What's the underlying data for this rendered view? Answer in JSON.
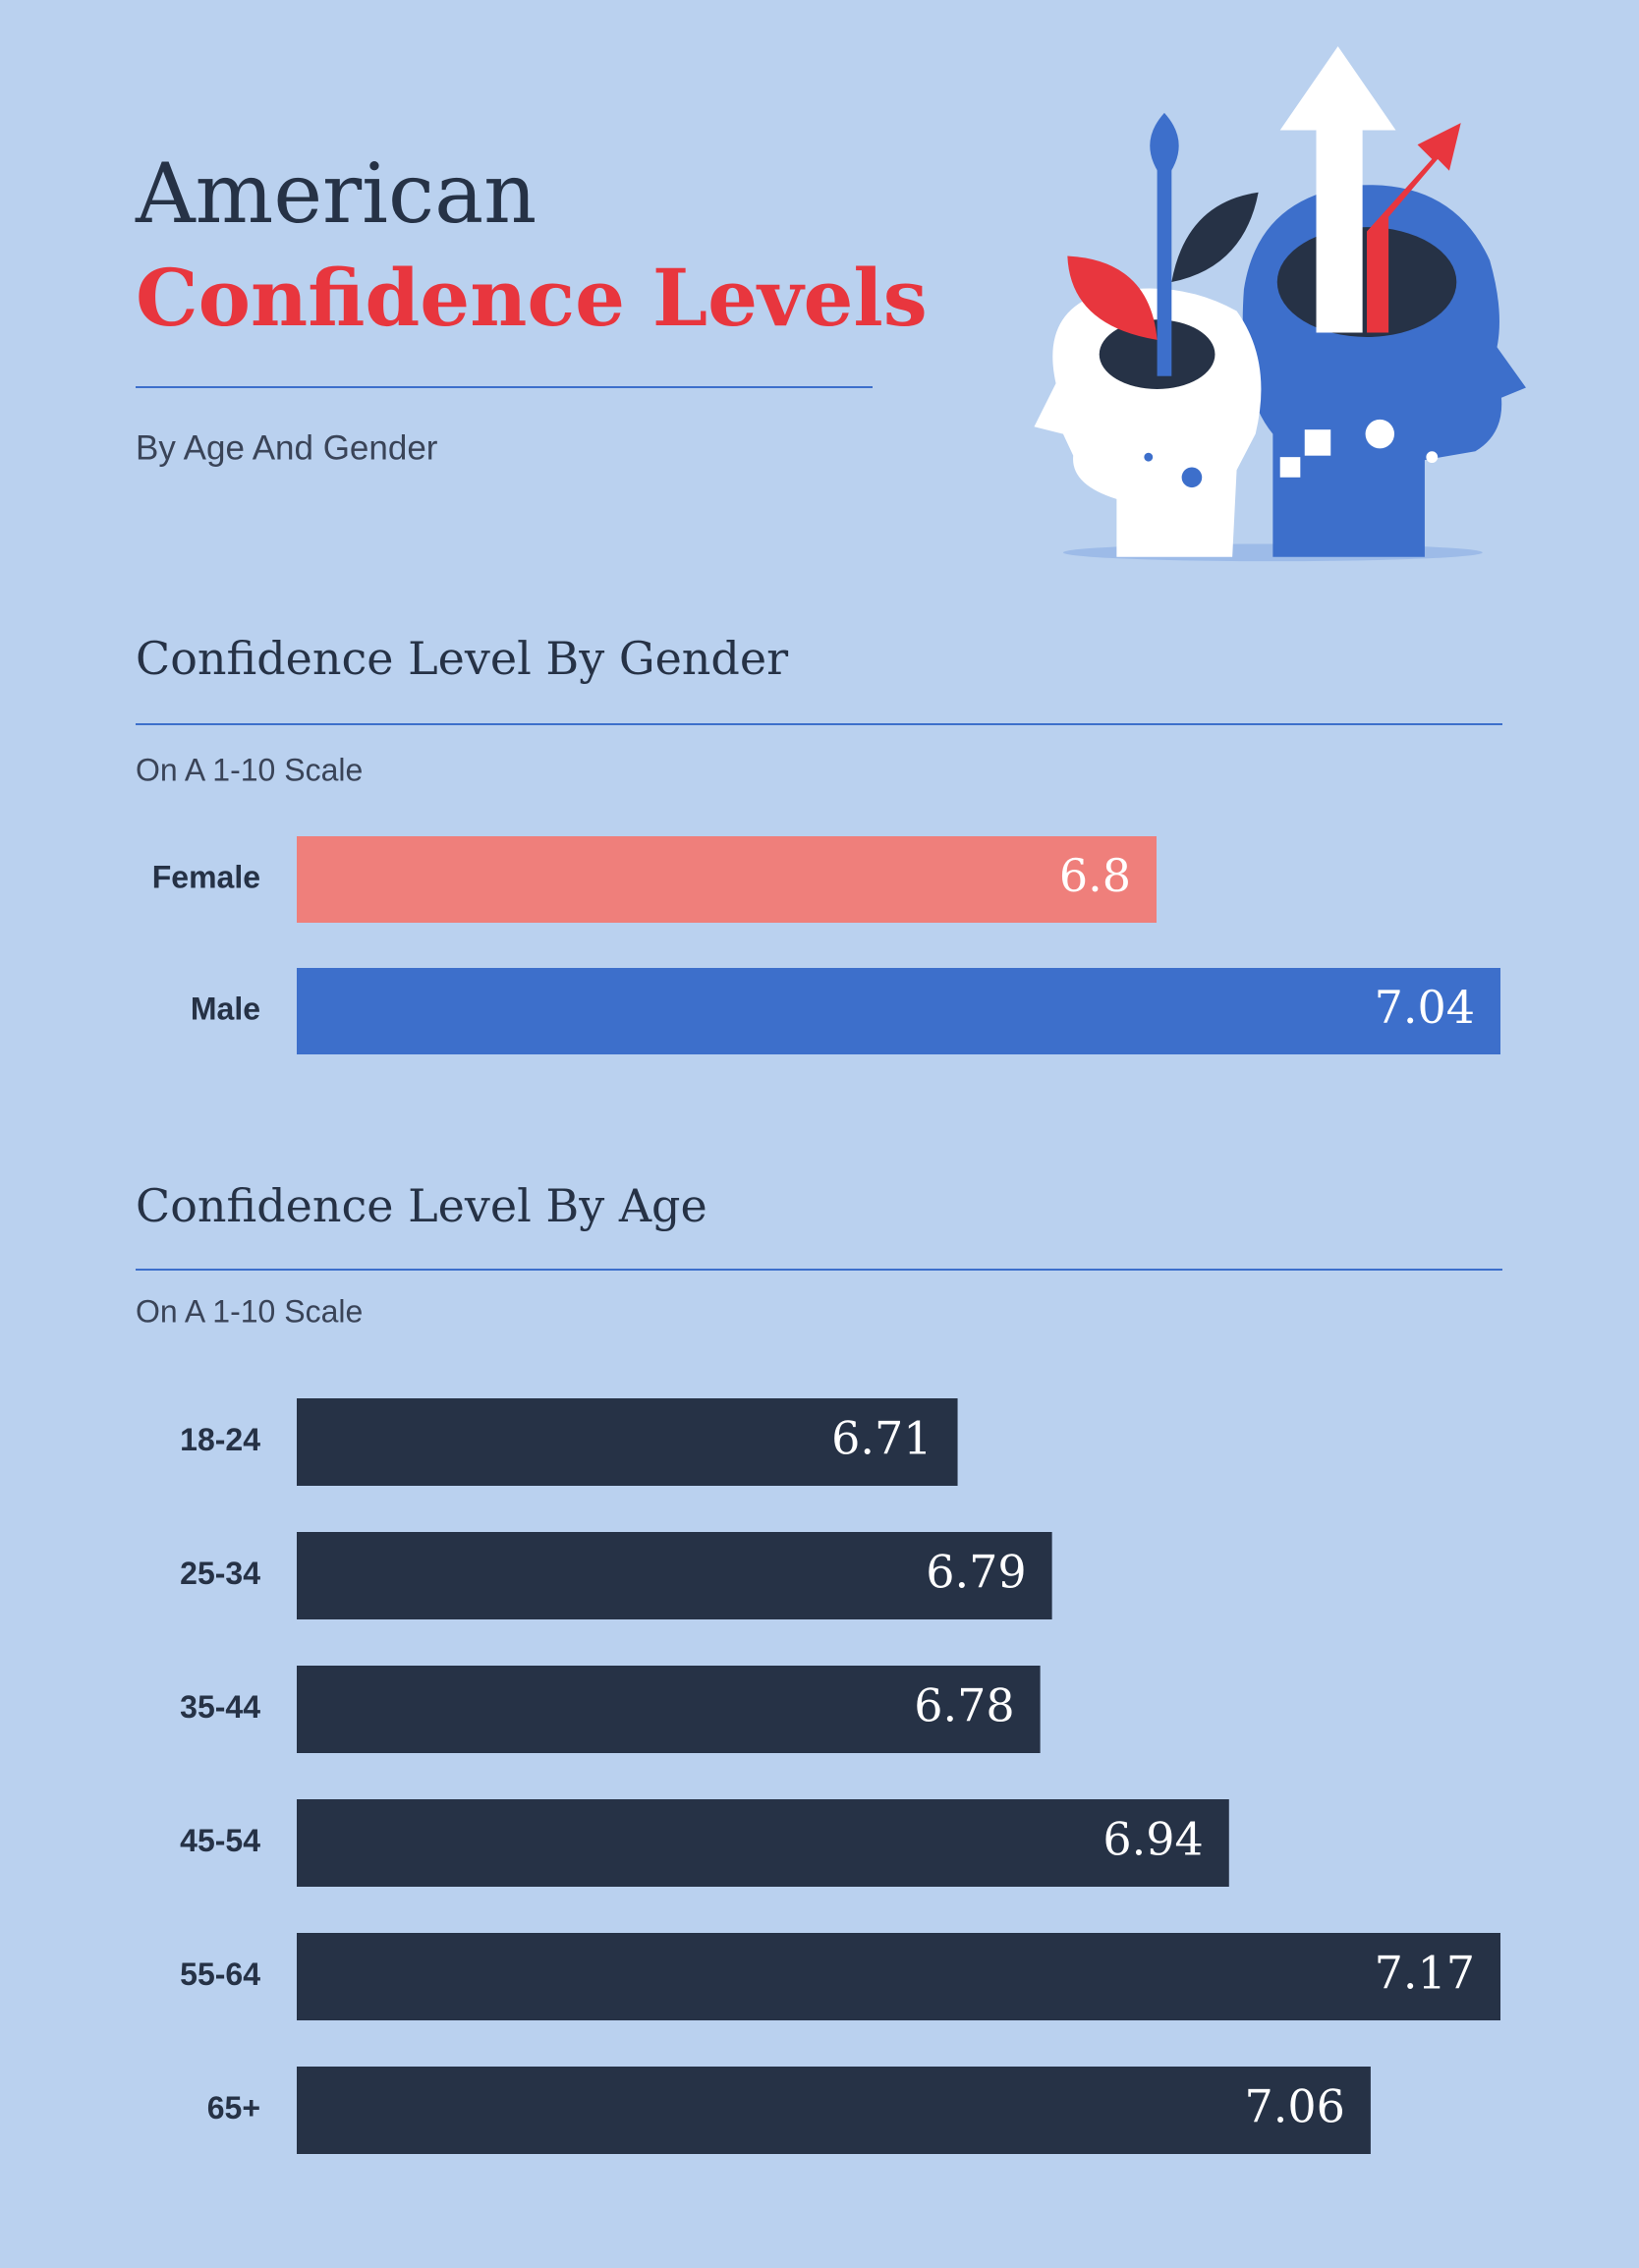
{
  "header": {
    "title_line1": "American",
    "title_line2": "Confidence Levels",
    "subtitle": "By Age And Gender"
  },
  "chart_data": [
    {
      "type": "bar",
      "orientation": "horizontal",
      "title": "Confidence Level By Gender",
      "subtitle": "On A 1-10 Scale",
      "categories": [
        "Female",
        "Male"
      ],
      "values": [
        6.8,
        7.04
      ],
      "colors": [
        "#ef7f7b",
        "#3d6fcb"
      ],
      "xlim": [
        6.2,
        7.04
      ]
    },
    {
      "type": "bar",
      "orientation": "horizontal",
      "title": "Confidence Level By Age",
      "subtitle": "On A 1-10 Scale",
      "categories": [
        "18-24",
        "25-34",
        "35-44",
        "45-54",
        "55-64",
        "65+"
      ],
      "values": [
        6.71,
        6.79,
        6.78,
        6.94,
        7.17,
        7.06
      ],
      "colors": [
        "#263246",
        "#263246",
        "#263246",
        "#263246",
        "#263246",
        "#263246"
      ],
      "xlim": [
        6.15,
        7.17
      ]
    }
  ]
}
